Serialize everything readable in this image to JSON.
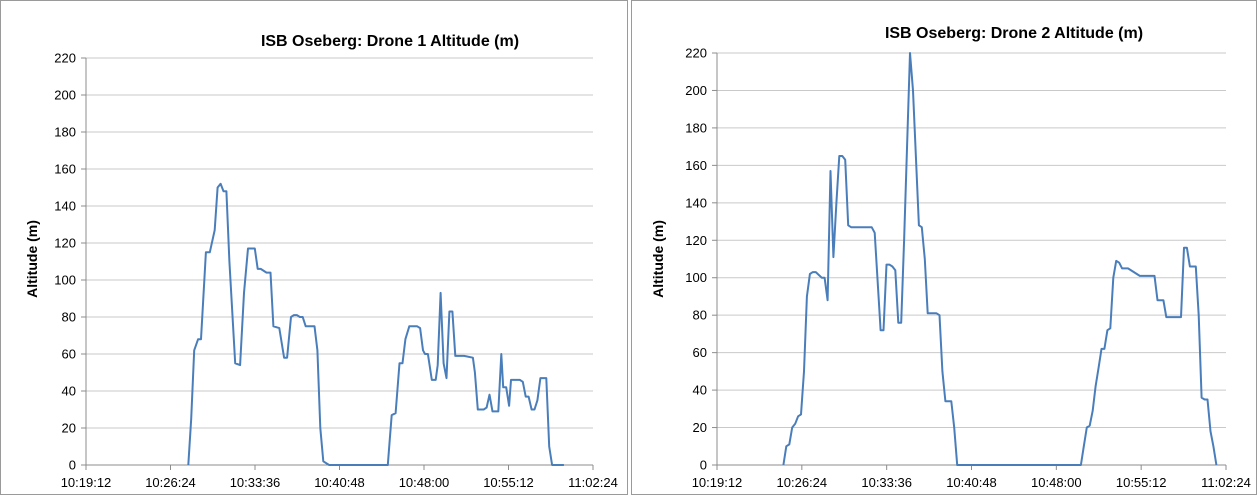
{
  "chart_data": [
    {
      "type": "line",
      "title": "ISB Oseberg: Drone 1 Altitude (m)",
      "xlabel": "",
      "ylabel": "Altitude (m)",
      "x_ticks": [
        "10:19:12",
        "10:26:24",
        "10:33:36",
        "10:40:48",
        "10:48:00",
        "10:55:12",
        "11:02:24"
      ],
      "y_ticks": [
        "0",
        "20",
        "40",
        "60",
        "80",
        "100",
        "120",
        "140",
        "160",
        "180",
        "200",
        "220"
      ],
      "xlim": [
        "10:19:12",
        "11:02:24"
      ],
      "ylim": [
        0,
        220
      ],
      "grid": true,
      "color": "#4a7ebb",
      "series": [
        {
          "x": [
            "10:27:55",
            "10:28:10",
            "10:28:25",
            "10:28:45",
            "10:29:00",
            "10:29:25",
            "10:29:45",
            "10:30:10",
            "10:30:25",
            "10:30:40",
            "10:30:55",
            "10:31:10",
            "10:31:25",
            "10:31:55",
            "10:32:20",
            "10:32:40",
            "10:33:00",
            "10:33:35",
            "10:33:50",
            "10:34:05",
            "10:34:35",
            "10:34:55",
            "10:35:10",
            "10:35:40",
            "10:36:05",
            "10:36:20",
            "10:36:40",
            "10:36:55",
            "10:37:10",
            "10:37:25",
            "10:37:40",
            "10:37:55",
            "10:38:25",
            "10:38:40",
            "10:38:55",
            "10:39:10",
            "10:39:25",
            "10:39:55",
            "10:40:10",
            "10:40:25",
            "10:40:40",
            "10:40:55",
            "10:41:05",
            "10:42:00",
            "10:44:00",
            "10:44:55",
            "10:45:05",
            "10:45:15",
            "10:45:35",
            "10:45:55",
            "10:46:10",
            "10:46:25",
            "10:46:45",
            "10:47:00",
            "10:47:25",
            "10:47:40",
            "10:47:55",
            "10:48:05",
            "10:48:20",
            "10:48:40",
            "10:49:00",
            "10:49:10",
            "10:49:25",
            "10:49:40",
            "10:49:55",
            "10:50:10",
            "10:50:25",
            "10:50:40",
            "10:50:55",
            "10:51:10",
            "10:51:25",
            "10:52:10",
            "10:52:20",
            "10:52:35",
            "10:52:50",
            "10:53:05",
            "10:53:20",
            "10:53:35",
            "10:53:50",
            "10:54:05",
            "10:54:20",
            "10:54:35",
            "10:54:45",
            "10:55:00",
            "10:55:15",
            "10:55:25",
            "10:55:40",
            "10:55:55",
            "10:56:10",
            "10:56:25",
            "10:56:40",
            "10:56:55",
            "10:57:10",
            "10:57:25",
            "10:57:40",
            "10:57:55",
            "10:58:10",
            "10:58:25",
            "10:58:40",
            "10:58:55",
            "10:59:10",
            "10:59:25",
            "10:59:40",
            "10:59:55"
          ],
          "values": [
            0,
            25,
            62,
            68,
            68,
            115,
            115,
            127,
            150,
            152,
            148,
            148,
            110,
            55,
            54,
            93,
            117,
            117,
            106,
            106,
            104,
            104,
            75,
            74,
            58,
            58,
            80,
            81,
            81,
            80,
            80,
            75,
            75,
            75,
            62,
            20,
            2,
            0,
            0,
            0,
            0,
            0,
            0,
            0,
            0,
            0,
            14,
            27,
            28,
            55,
            55,
            68,
            75,
            75,
            75,
            74,
            62,
            60,
            60,
            46,
            46,
            54,
            93,
            55,
            47,
            83,
            83,
            59,
            59,
            59,
            59,
            58,
            50,
            30,
            30,
            30,
            31,
            38,
            29,
            29,
            29,
            60,
            42,
            42,
            32,
            46,
            46,
            46,
            46,
            45,
            37,
            37,
            30,
            30,
            35,
            47,
            47,
            47,
            10,
            0,
            0,
            0,
            0,
            0
          ]
        }
      ]
    },
    {
      "type": "line",
      "title": "ISB Oseberg: Drone 2 Altitude (m)",
      "xlabel": "",
      "ylabel": "Altitude (m)",
      "x_ticks": [
        "10:19:12",
        "10:26:24",
        "10:33:36",
        "10:40:48",
        "10:48:00",
        "10:55:12",
        "11:02:24"
      ],
      "y_ticks": [
        "0",
        "20",
        "40",
        "60",
        "80",
        "100",
        "120",
        "140",
        "160",
        "180",
        "200",
        "220"
      ],
      "xlim": [
        "10:19:12",
        "11:02:24"
      ],
      "ylim": [
        0,
        220
      ],
      "grid": true,
      "color": "#4a7ebb",
      "series": [
        {
          "x": [
            "10:24:50",
            "10:25:05",
            "10:25:20",
            "10:25:35",
            "10:25:50",
            "10:26:05",
            "10:26:20",
            "10:26:35",
            "10:26:50",
            "10:27:05",
            "10:27:20",
            "10:27:35",
            "10:28:05",
            "10:28:20",
            "10:28:35",
            "10:28:50",
            "10:29:05",
            "10:29:20",
            "10:29:35",
            "10:29:50",
            "10:30:05",
            "10:30:20",
            "10:30:35",
            "10:30:50",
            "10:31:05",
            "10:32:20",
            "10:32:35",
            "10:33:05",
            "10:33:20",
            "10:33:35",
            "10:33:50",
            "10:34:05",
            "10:34:20",
            "10:34:35",
            "10:34:50",
            "10:35:05",
            "10:35:35",
            "10:35:50",
            "10:36:20",
            "10:36:35",
            "10:36:50",
            "10:37:05",
            "10:37:20",
            "10:37:35",
            "10:37:50",
            "10:38:05",
            "10:38:20",
            "10:38:35",
            "10:38:50",
            "10:39:05",
            "10:39:20",
            "10:39:35",
            "10:39:50",
            "10:40:05",
            "10:40:20",
            "10:40:35",
            "10:40:45",
            "10:41:00",
            "10:44:00",
            "10:47:00",
            "10:48:00",
            "10:49:30",
            "10:49:35",
            "10:50:05",
            "10:50:20",
            "10:50:35",
            "10:50:50",
            "10:51:05",
            "10:51:20",
            "10:51:35",
            "10:51:50",
            "10:52:05",
            "10:52:20",
            "10:52:35",
            "10:52:50",
            "10:53:05",
            "10:53:20",
            "10:53:35",
            "10:53:50",
            "10:54:05",
            "10:55:05",
            "10:55:20",
            "10:56:20",
            "10:56:35",
            "10:57:05",
            "10:57:20",
            "10:58:20",
            "10:58:35",
            "10:58:50",
            "10:59:05",
            "10:59:20",
            "10:59:35",
            "10:59:50",
            "11:00:05",
            "11:00:20",
            "11:00:35",
            "11:00:50",
            "11:01:05",
            "11:01:20",
            "11:01:35"
          ],
          "values": [
            0,
            10,
            11,
            20,
            22,
            26,
            27,
            50,
            90,
            102,
            103,
            103,
            100,
            100,
            88,
            157,
            111,
            140,
            165,
            165,
            163,
            128,
            127,
            127,
            127,
            127,
            124,
            72,
            72,
            107,
            107,
            106,
            104,
            76,
            76,
            120,
            220,
            200,
            128,
            127,
            110,
            81,
            81,
            81,
            81,
            80,
            50,
            34,
            34,
            34,
            20,
            0,
            0,
            0,
            0,
            0,
            0,
            0,
            0,
            0,
            0,
            0,
            0,
            0,
            10,
            20,
            21,
            29,
            42,
            52,
            62,
            62,
            72,
            73,
            100,
            109,
            108,
            105,
            105,
            105,
            101,
            101,
            101,
            88,
            88,
            79,
            79,
            79,
            116,
            116,
            106,
            106,
            106,
            80,
            36,
            35,
            35,
            18,
            10,
            0
          ]
        }
      ]
    }
  ]
}
